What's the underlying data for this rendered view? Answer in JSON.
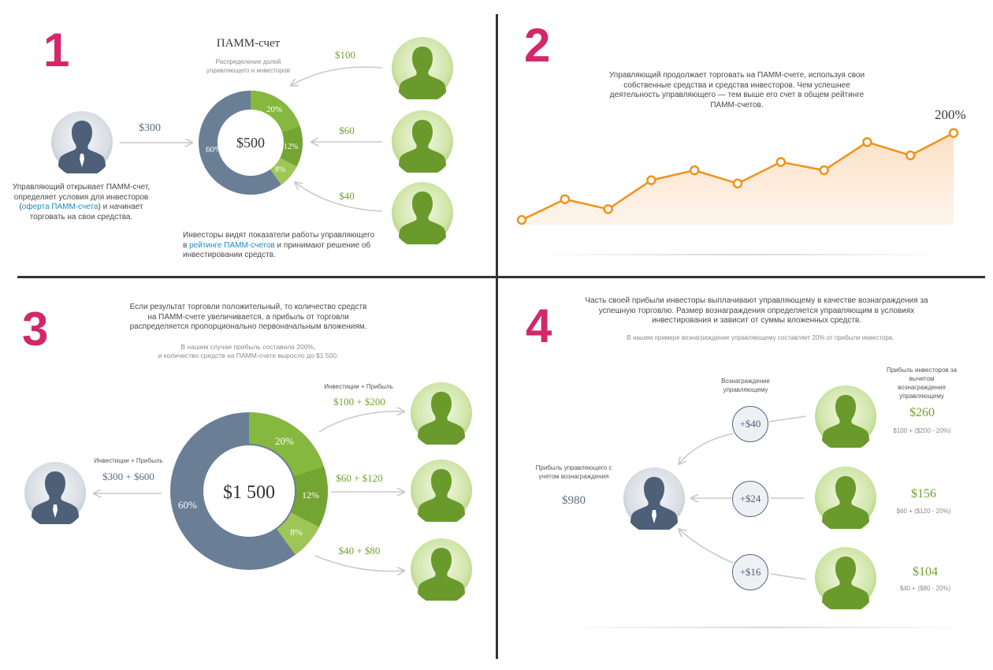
{
  "panel1": {
    "number": "1",
    "title": "ПАММ-счет",
    "subtitle_l1": "Распределение долей",
    "subtitle_l2": "управляющего и инвесторов",
    "manager_amount": "$300",
    "manager_text_l1": "Управляющий открывает ПАММ-счет,",
    "manager_text_l2": "определяет условия для инвесторов",
    "manager_text_l3_pre": "(",
    "manager_text_l3_link": "оферта ПАММ-счета",
    "manager_text_l3_post": ") и начинает",
    "manager_text_l4": "торговать на свои средства.",
    "center_total": "$500",
    "segments": [
      "60%",
      "20%",
      "12%",
      "8%"
    ],
    "investor_amounts": [
      "$100",
      "$60",
      "$40"
    ],
    "investors_text_l1": "Инвесторы видят показатели работы управляющего",
    "investors_text_l2_pre": "в ",
    "investors_text_l2_link": "рейтинге ПАММ-счетов",
    "investors_text_l2_post": " и принимают решение об",
    "investors_text_l3": "инвестировании средств."
  },
  "panel2": {
    "number": "2",
    "text_l1": "Управляющий продолжает торговать на ПАММ-счете, используя свои",
    "text_l2": "собственные средства и средства инвесторов. Чем успешнее",
    "text_l3": "деятельность управляющего — тем выше его счет в общем рейтинге",
    "text_l4": "ПАММ-счетов.",
    "final_label": "200%"
  },
  "chart_data": {
    "type": "line",
    "title": "",
    "xlabel": "",
    "ylabel": "",
    "annotation": "200%",
    "series": [
      {
        "values": [
          0,
          25,
          13,
          48,
          60,
          44,
          70,
          60,
          94,
          78,
          105
        ]
      }
    ]
  },
  "panel3": {
    "number": "3",
    "text_l1": "Если результат торговли положительный, то количество средств",
    "text_l2": "на ПАММ-счете увеличивается, а прибыль от торговли",
    "text_l3": "распределяется пропорционально первоначальным вложениям.",
    "note_l1": "В нашем случае прибыль составила 200%,",
    "note_l2": "и количество средств на ПАММ-счете выросло до $1 500.",
    "manager_label": "Инвестиции + Прибыль",
    "manager_amount": "$300 + $600",
    "center_total": "$1 500",
    "segments": [
      "60%",
      "20%",
      "12%",
      "8%"
    ],
    "investors_label": "Инвестиции + Прибыль",
    "investor_amounts": [
      "$100 + $200",
      "$60 + $120",
      "$40 + $80"
    ]
  },
  "panel4": {
    "number": "4",
    "text_l1": "Часть своей прибыли инвесторы выплачивают управляющему в качестве вознаграждения за",
    "text_l2": "успешную торговлю. Размер вознаграждения определяется управляющим в условиях",
    "text_l3": "инвестирования и зависит от суммы вложенных средств.",
    "note": "В нашем примере вознаграждение управляющему составляет 20% от прибыли инвестора.",
    "reward_label_l1": "Вознаграждение",
    "reward_label_l2": "управляющему",
    "investors_label_l1": "Прибыль инвесторов за",
    "investors_label_l2": "вычетом",
    "investors_label_l3": "вознаграждения",
    "investors_label_l4": "управляющему",
    "manager_label_l1": "Прибыль управляющего с",
    "manager_label_l2": "учетом вознаграждения",
    "manager_amount": "$980",
    "rewards": [
      "+$40",
      "+$24",
      "+$16"
    ],
    "profits": [
      "$260",
      "$156",
      "$104"
    ],
    "formulas": [
      "$100 + ($200 - 20%)",
      "$60 + ($120 - 20%)",
      "$40 + ($80 - 20%)"
    ]
  }
}
